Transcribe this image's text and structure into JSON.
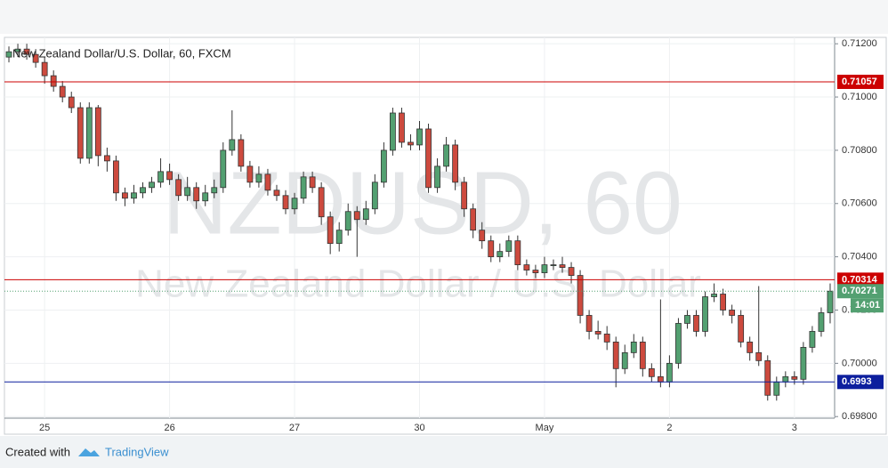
{
  "chart_data": {
    "type": "candlestick",
    "title": "New Zealand Dollar/U.S. Dollar, 60, FXCM",
    "watermark": "NZDUSD, 60",
    "watermark_subtitle": "New Zealand Dollar / U.S. Dollar",
    "countdown": "14:01",
    "footer": {
      "prefix": "Created with",
      "brand": "TradingView"
    },
    "up_color": "#53a071",
    "down_color": "#cd4a3e",
    "ylim": [
      0.69794,
      0.71224
    ],
    "yticks": [
      {
        "value": 0.698,
        "label": "0.69800"
      },
      {
        "value": 0.7,
        "label": "0.70000"
      },
      {
        "value": 0.702,
        "label": "0.70200"
      },
      {
        "value": 0.704,
        "label": "0.70400"
      },
      {
        "value": 0.706,
        "label": "0.70600"
      },
      {
        "value": 0.708,
        "label": "0.70800"
      },
      {
        "value": 0.71,
        "label": "0.71000"
      },
      {
        "value": 0.712,
        "label": "0.71200"
      }
    ],
    "grid": true,
    "levels": [
      {
        "value": 0.71057,
        "color": "#cc0000"
      },
      {
        "value": 0.70314,
        "color": "#cc0000"
      },
      {
        "value": 0.6993,
        "color": "#0d1f9e"
      }
    ],
    "categories": [
      null,
      null,
      null,
      null,
      "25",
      null,
      null,
      null,
      null,
      null,
      null,
      null,
      null,
      null,
      null,
      null,
      null,
      null,
      "26",
      null,
      null,
      null,
      null,
      null,
      null,
      null,
      null,
      null,
      null,
      null,
      null,
      null,
      "27",
      null,
      null,
      null,
      null,
      null,
      null,
      null,
      null,
      null,
      null,
      null,
      null,
      null,
      "30",
      null,
      null,
      null,
      null,
      null,
      null,
      null,
      null,
      null,
      null,
      null,
      null,
      null,
      "May",
      null,
      null,
      null,
      null,
      null,
      null,
      null,
      null,
      null,
      null,
      null,
      null,
      null,
      "2",
      null,
      null,
      null,
      null,
      null,
      null,
      null,
      null,
      null,
      null,
      null,
      null,
      null,
      "3",
      null,
      null,
      null,
      null
    ],
    "ohlc": [
      [
        0.7115,
        0.7119,
        0.7113,
        0.7117
      ],
      [
        0.7117,
        0.712,
        0.7115,
        0.7118
      ],
      [
        0.7118,
        0.712,
        0.7114,
        0.7116
      ],
      [
        0.7116,
        0.7118,
        0.7111,
        0.7113
      ],
      [
        0.7113,
        0.7115,
        0.7105,
        0.7108
      ],
      [
        0.7108,
        0.711,
        0.7102,
        0.7104
      ],
      [
        0.7104,
        0.7106,
        0.7098,
        0.71
      ],
      [
        0.71,
        0.7102,
        0.7094,
        0.7096
      ],
      [
        0.7096,
        0.7098,
        0.7075,
        0.7077
      ],
      [
        0.7077,
        0.7098,
        0.7075,
        0.7096
      ],
      [
        0.7096,
        0.7097,
        0.7074,
        0.7078
      ],
      [
        0.7078,
        0.7081,
        0.7072,
        0.7076
      ],
      [
        0.7076,
        0.7078,
        0.7061,
        0.7064
      ],
      [
        0.7064,
        0.7066,
        0.7059,
        0.7062
      ],
      [
        0.7062,
        0.7067,
        0.706,
        0.7064
      ],
      [
        0.7064,
        0.7068,
        0.7062,
        0.7066
      ],
      [
        0.7066,
        0.707,
        0.7064,
        0.7068
      ],
      [
        0.7068,
        0.7077,
        0.7066,
        0.7072
      ],
      [
        0.7072,
        0.7075,
        0.7067,
        0.7069
      ],
      [
        0.7069,
        0.7071,
        0.7061,
        0.7063
      ],
      [
        0.7063,
        0.707,
        0.7061,
        0.7066
      ],
      [
        0.7066,
        0.7068,
        0.7058,
        0.7061
      ],
      [
        0.7061,
        0.7067,
        0.7059,
        0.7064
      ],
      [
        0.7064,
        0.7069,
        0.7062,
        0.7066
      ],
      [
        0.7066,
        0.7083,
        0.7064,
        0.708
      ],
      [
        0.708,
        0.7095,
        0.7078,
        0.7084
      ],
      [
        0.7084,
        0.7086,
        0.7072,
        0.7074
      ],
      [
        0.7074,
        0.7076,
        0.7066,
        0.7068
      ],
      [
        0.7068,
        0.7074,
        0.7066,
        0.7071
      ],
      [
        0.7071,
        0.7073,
        0.7063,
        0.7065
      ],
      [
        0.7065,
        0.7067,
        0.7061,
        0.7063
      ],
      [
        0.7063,
        0.7065,
        0.7056,
        0.7058
      ],
      [
        0.7058,
        0.7064,
        0.7056,
        0.7062
      ],
      [
        0.7062,
        0.7072,
        0.706,
        0.707
      ],
      [
        0.707,
        0.7072,
        0.7064,
        0.7066
      ],
      [
        0.7066,
        0.7068,
        0.7052,
        0.7055
      ],
      [
        0.7055,
        0.7057,
        0.7041,
        0.7045
      ],
      [
        0.7045,
        0.7053,
        0.7042,
        0.705
      ],
      [
        0.705,
        0.706,
        0.7048,
        0.7057
      ],
      [
        0.7057,
        0.7059,
        0.704,
        0.7054
      ],
      [
        0.7054,
        0.7061,
        0.7052,
        0.7058
      ],
      [
        0.7058,
        0.7071,
        0.7056,
        0.7068
      ],
      [
        0.7068,
        0.7083,
        0.7066,
        0.708
      ],
      [
        0.708,
        0.7096,
        0.7078,
        0.7094
      ],
      [
        0.7094,
        0.7096,
        0.7081,
        0.7083
      ],
      [
        0.7083,
        0.7086,
        0.708,
        0.7082
      ],
      [
        0.7082,
        0.7091,
        0.708,
        0.7088
      ],
      [
        0.7088,
        0.709,
        0.7064,
        0.7066
      ],
      [
        0.7066,
        0.7077,
        0.7064,
        0.7074
      ],
      [
        0.7074,
        0.7085,
        0.7072,
        0.7082
      ],
      [
        0.7082,
        0.7084,
        0.7065,
        0.7068
      ],
      [
        0.7068,
        0.707,
        0.7055,
        0.7058
      ],
      [
        0.7058,
        0.706,
        0.7047,
        0.705
      ],
      [
        0.705,
        0.7053,
        0.7043,
        0.7046
      ],
      [
        0.7046,
        0.7048,
        0.7038,
        0.704
      ],
      [
        0.704,
        0.7045,
        0.7038,
        0.7042
      ],
      [
        0.7042,
        0.7048,
        0.704,
        0.7046
      ],
      [
        0.7046,
        0.7048,
        0.7035,
        0.7037
      ],
      [
        0.7037,
        0.7039,
        0.7033,
        0.7035
      ],
      [
        0.7035,
        0.7037,
        0.7032,
        0.7034
      ],
      [
        0.7034,
        0.704,
        0.7032,
        0.7037
      ],
      [
        0.7037,
        0.7039,
        0.7035,
        0.7037
      ],
      [
        0.7037,
        0.704,
        0.7034,
        0.7036
      ],
      [
        0.7036,
        0.7038,
        0.703,
        0.7033
      ],
      [
        0.7033,
        0.7035,
        0.7015,
        0.7018
      ],
      [
        0.7018,
        0.702,
        0.7009,
        0.7012
      ],
      [
        0.7012,
        0.7016,
        0.7009,
        0.7011
      ],
      [
        0.7011,
        0.7014,
        0.7005,
        0.7008
      ],
      [
        0.7008,
        0.701,
        0.6991,
        0.6998
      ],
      [
        0.6998,
        0.7007,
        0.6996,
        0.7004
      ],
      [
        0.7004,
        0.7011,
        0.7002,
        0.7008
      ],
      [
        0.7008,
        0.701,
        0.6995,
        0.6998
      ],
      [
        0.6998,
        0.7,
        0.6993,
        0.6995
      ],
      [
        0.6995,
        0.7024,
        0.6991,
        0.6993
      ],
      [
        0.6993,
        0.7003,
        0.6991,
        0.7
      ],
      [
        0.7,
        0.7017,
        0.6998,
        0.7015
      ],
      [
        0.7015,
        0.702,
        0.7013,
        0.7018
      ],
      [
        0.7018,
        0.702,
        0.701,
        0.7012
      ],
      [
        0.7012,
        0.7027,
        0.701,
        0.7025
      ],
      [
        0.7025,
        0.703,
        0.7023,
        0.7026
      ],
      [
        0.7026,
        0.7028,
        0.7018,
        0.702
      ],
      [
        0.702,
        0.7022,
        0.7015,
        0.7018
      ],
      [
        0.7018,
        0.702,
        0.7006,
        0.7008
      ],
      [
        0.7008,
        0.701,
        0.7001,
        0.7004
      ],
      [
        0.7004,
        0.7029,
        0.6999,
        0.7001
      ],
      [
        0.7001,
        0.7003,
        0.6986,
        0.6988
      ],
      [
        0.6988,
        0.6995,
        0.6986,
        0.6993
      ],
      [
        0.6993,
        0.6997,
        0.6991,
        0.6995
      ],
      [
        0.6995,
        0.6997,
        0.6992,
        0.6994
      ],
      [
        0.6994,
        0.7008,
        0.6992,
        0.7006
      ],
      [
        0.7006,
        0.7014,
        0.7004,
        0.7012
      ],
      [
        0.7012,
        0.7021,
        0.701,
        0.7019
      ],
      [
        0.7019,
        0.703,
        0.7015,
        0.70271
      ]
    ]
  }
}
